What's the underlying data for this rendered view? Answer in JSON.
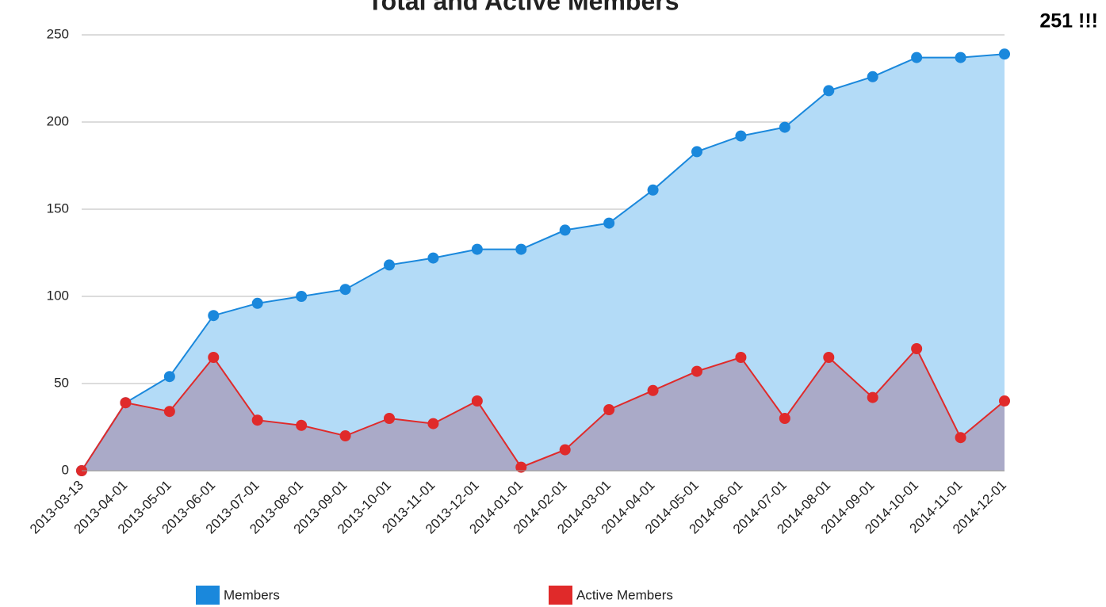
{
  "chart_data": {
    "type": "area",
    "title": "Total and Active Members",
    "annotation": "251 !!!",
    "categories": [
      "2013-03-13",
      "2013-04-01",
      "2013-05-01",
      "2013-06-01",
      "2013-07-01",
      "2013-08-01",
      "2013-09-01",
      "2013-10-01",
      "2013-11-01",
      "2013-12-01",
      "2014-01-01",
      "2014-02-01",
      "2014-03-01",
      "2014-04-01",
      "2014-05-01",
      "2014-06-01",
      "2014-07-01",
      "2014-08-01",
      "2014-09-01",
      "2014-10-01",
      "2014-11-01",
      "2014-12-01"
    ],
    "series": [
      {
        "name": "Members",
        "color": "#1a88dc",
        "fill": "#b3dbf7",
        "values": [
          0,
          39,
          54,
          89,
          96,
          100,
          104,
          118,
          122,
          127,
          127,
          138,
          142,
          161,
          183,
          192,
          197,
          218,
          226,
          237,
          237,
          239
        ]
      },
      {
        "name": "Active Members",
        "color": "#e02a2a",
        "fill": "#aaaac8",
        "values": [
          0,
          39,
          34,
          65,
          29,
          26,
          20,
          30,
          27,
          40,
          2,
          12,
          35,
          46,
          57,
          65,
          30,
          65,
          42,
          70,
          19,
          40
        ]
      }
    ],
    "ylim": [
      0,
      250
    ],
    "yticks": [
      0,
      50,
      100,
      150,
      200,
      250
    ],
    "grid": true,
    "legend": "bottom"
  }
}
